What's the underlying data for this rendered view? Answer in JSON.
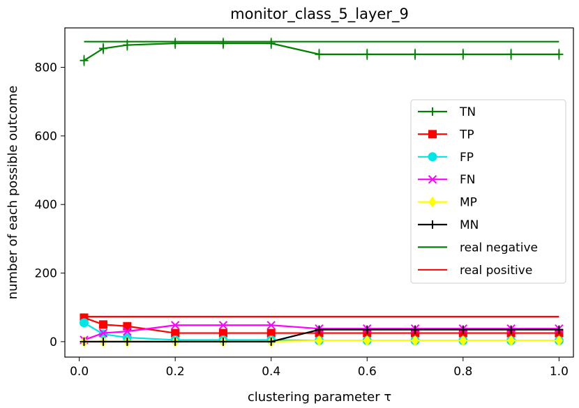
{
  "chart_data": {
    "type": "line",
    "title": "monitor_class_5_layer_9",
    "xlabel": "clustering parameter τ",
    "ylabel": "number of each possible outcome",
    "xlim": [
      -0.03,
      1.03
    ],
    "ylim": [
      -45,
      915
    ],
    "xticks": [
      0.0,
      0.2,
      0.4,
      0.6,
      0.8,
      1.0
    ],
    "xtick_labels": [
      "0.0",
      "0.2",
      "0.4",
      "0.6",
      "0.8",
      "1.0"
    ],
    "yticks": [
      0,
      200,
      400,
      600,
      800
    ],
    "ytick_labels": [
      "0",
      "200",
      "400",
      "600",
      "800"
    ],
    "grid": false,
    "legend_position": "center-right",
    "x": [
      0.01,
      0.05,
      0.1,
      0.2,
      0.3,
      0.4,
      0.5,
      0.6,
      0.7,
      0.8,
      0.9,
      1.0
    ],
    "series": [
      {
        "name": "TN",
        "color": "#008000",
        "marker": "plus",
        "errorbars": true,
        "values": [
          820,
          855,
          865,
          870,
          870,
          870,
          838,
          838,
          838,
          838,
          838,
          838
        ]
      },
      {
        "name": "TP",
        "color": "#ff0000",
        "marker": "square",
        "values": [
          70,
          50,
          45,
          25,
          25,
          25,
          25,
          25,
          25,
          25,
          25,
          25
        ]
      },
      {
        "name": "FP",
        "color": "#00e5e5",
        "marker": "circle",
        "values": [
          55,
          22,
          12,
          5,
          5,
          5,
          3,
          3,
          3,
          3,
          3,
          3
        ]
      },
      {
        "name": "FN",
        "color": "#ff00ff",
        "marker": "x",
        "values": [
          5,
          25,
          30,
          48,
          48,
          48,
          38,
          38,
          38,
          38,
          38,
          38
        ]
      },
      {
        "name": "MP",
        "color": "#ffff00",
        "marker": "diamond",
        "values": [
          0,
          0,
          0,
          0,
          0,
          0,
          3,
          3,
          3,
          3,
          3,
          3
        ]
      },
      {
        "name": "MN",
        "color": "#000000",
        "marker": "plus",
        "values": [
          0,
          0,
          0,
          0,
          0,
          0,
          35,
          35,
          35,
          35,
          35,
          35
        ]
      }
    ],
    "reference_lines": [
      {
        "name": "real negative",
        "color": "#008000",
        "y": 875,
        "x_range": [
          0.01,
          1.0
        ]
      },
      {
        "name": "real positive",
        "color": "#ff0000",
        "y": 73,
        "x_range": [
          0.01,
          1.0
        ]
      }
    ]
  }
}
